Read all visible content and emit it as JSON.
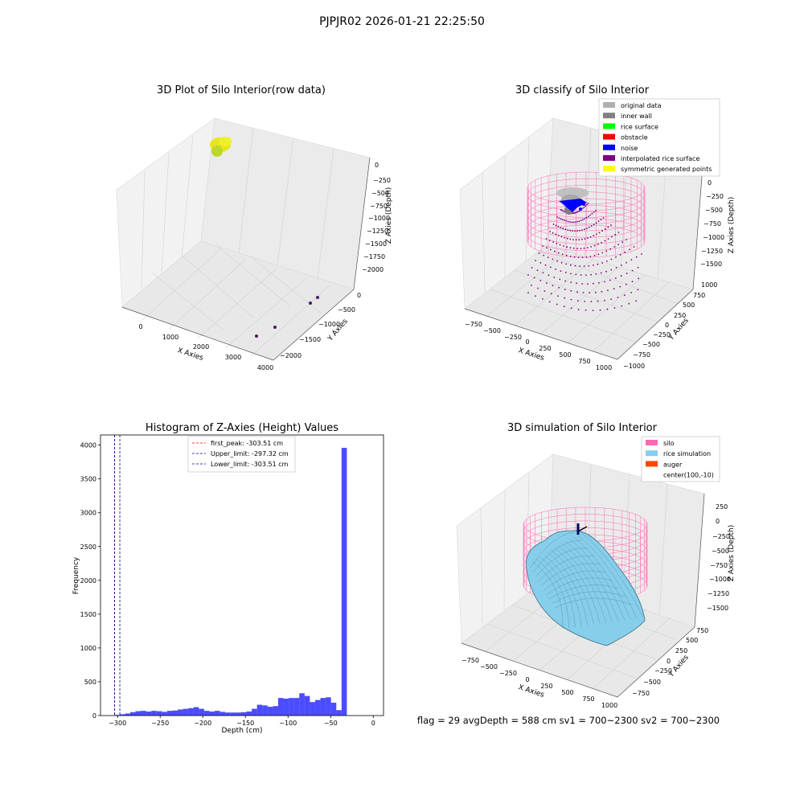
{
  "suptitle": "PJPJR02 2026-01-21 22:25:50",
  "footer": "flag = 29  avgDepth = 588 cm  sv1 = 700~2300  sv2 = 700~2300",
  "chart_data": [
    {
      "type": "scatter",
      "title": "3D Plot of Silo Interior(row data)",
      "xlabel": "X Axies",
      "ylabel": "Y Axies",
      "zlabel": "Z Axies (Depth)",
      "x_ticks": [
        "0",
        "1000",
        "2000",
        "3000",
        "4000"
      ],
      "y_ticks": [
        "0",
        "−500",
        "−1000",
        "−1500",
        "−2000"
      ],
      "z_ticks": [
        "0",
        "−250",
        "−500",
        "−750",
        "−1000",
        "−1250",
        "−1500",
        "−1750",
        "−2000"
      ],
      "point_groups": [
        {
          "color": "#e8e41c",
          "description": "dense cluster near origin",
          "x": [
            0,
            150
          ],
          "y": [
            0,
            -100
          ],
          "z": [
            -300,
            0
          ]
        },
        {
          "color": "#4b1a5e",
          "points": [
            [
              3300,
              -200,
              -1950
            ],
            [
              3600,
              -500,
              -1900
            ],
            [
              2600,
              -1200,
              -1950
            ],
            [
              3100,
              -1400,
              -1950
            ]
          ]
        }
      ],
      "grid": true
    },
    {
      "type": "scatter",
      "title": "3D classify of Silo Interior",
      "xlabel": "X Axies",
      "ylabel": "Y Axies",
      "zlabel": "Z Axies (Depth)",
      "x_ticks": [
        "−750",
        "−500",
        "−250",
        "0",
        "250",
        "500",
        "750",
        "1000"
      ],
      "y_ticks": [
        "1000",
        "750",
        "500",
        "250",
        "0",
        "−250",
        "−500",
        "−750",
        "−1000"
      ],
      "z_ticks": [
        "0",
        "−250",
        "−500",
        "−750",
        "−1000",
        "−1250",
        "−1500"
      ],
      "legend": {
        "position": "top-right",
        "entries": [
          {
            "label": "original data",
            "color": "#b0b0b0"
          },
          {
            "label": "inner wall",
            "color": "#808080"
          },
          {
            "label": "rice surface",
            "color": "#00ff00"
          },
          {
            "label": "obstacle",
            "color": "#ff0000"
          },
          {
            "label": "noise",
            "color": "#0000ff"
          },
          {
            "label": "interpolated rice surface",
            "color": "#800080"
          },
          {
            "label": "symmetric generated points",
            "color": "#ffff00"
          }
        ]
      },
      "grid": true
    },
    {
      "type": "bar",
      "title": "Histogram of Z-Axies (Height) Values",
      "xlabel": "Depth (cm)",
      "ylabel": "Frequency",
      "xlim": [
        -320,
        12
      ],
      "ylim": [
        0,
        4150
      ],
      "x_ticks": [
        -300,
        -250,
        -200,
        -150,
        -100,
        -50,
        0
      ],
      "y_ticks": [
        0,
        500,
        1000,
        1500,
        2000,
        2500,
        3000,
        3500,
        4000
      ],
      "bin_width": 6.2,
      "bin_start": -310,
      "color": "#0000ff",
      "values": [
        0,
        10,
        20,
        30,
        50,
        65,
        70,
        60,
        70,
        65,
        55,
        70,
        75,
        90,
        100,
        110,
        125,
        100,
        70,
        60,
        70,
        55,
        45,
        45,
        45,
        50,
        60,
        100,
        160,
        150,
        130,
        140,
        260,
        250,
        260,
        260,
        330,
        290,
        200,
        230,
        260,
        270,
        190,
        80,
        3960
      ],
      "reference_lines": [
        {
          "label": "first_peak: -303.51 cm",
          "value": -303.51,
          "color": "#ff0000",
          "style": "dashed"
        },
        {
          "label": "Upper_limit: -297.32 cm",
          "value": -297.32,
          "color": "#0000aa",
          "style": "dashed"
        },
        {
          "label": "Lower_limit: -303.51 cm",
          "value": -303.51,
          "color": "#0000aa",
          "style": "dashed"
        }
      ],
      "legend": {
        "position": "top-center"
      },
      "grid": false
    },
    {
      "type": "scatter",
      "title": "3D simulation of Silo Interior",
      "xlabel": "X Axies",
      "ylabel": "Y Axies",
      "zlabel": "Z Axies (Depth)",
      "x_ticks": [
        "−750",
        "−500",
        "−250",
        "0",
        "250",
        "500",
        "750",
        "1000"
      ],
      "y_ticks": [
        "750",
        "500",
        "250",
        "0",
        "−250",
        "−500",
        "−750"
      ],
      "z_ticks": [
        "250",
        "0",
        "−250",
        "−500",
        "−750",
        "−1000",
        "−1250",
        "−1500"
      ],
      "legend": {
        "position": "top-right",
        "entries": [
          {
            "label": "silo",
            "color": "#ff69b4"
          },
          {
            "label": "rice simulation",
            "color": "#87ceeb"
          },
          {
            "label": "auger",
            "color": "#ff4500"
          },
          {
            "label": "center(100,-10)",
            "color": ""
          }
        ]
      },
      "grid": true
    }
  ]
}
